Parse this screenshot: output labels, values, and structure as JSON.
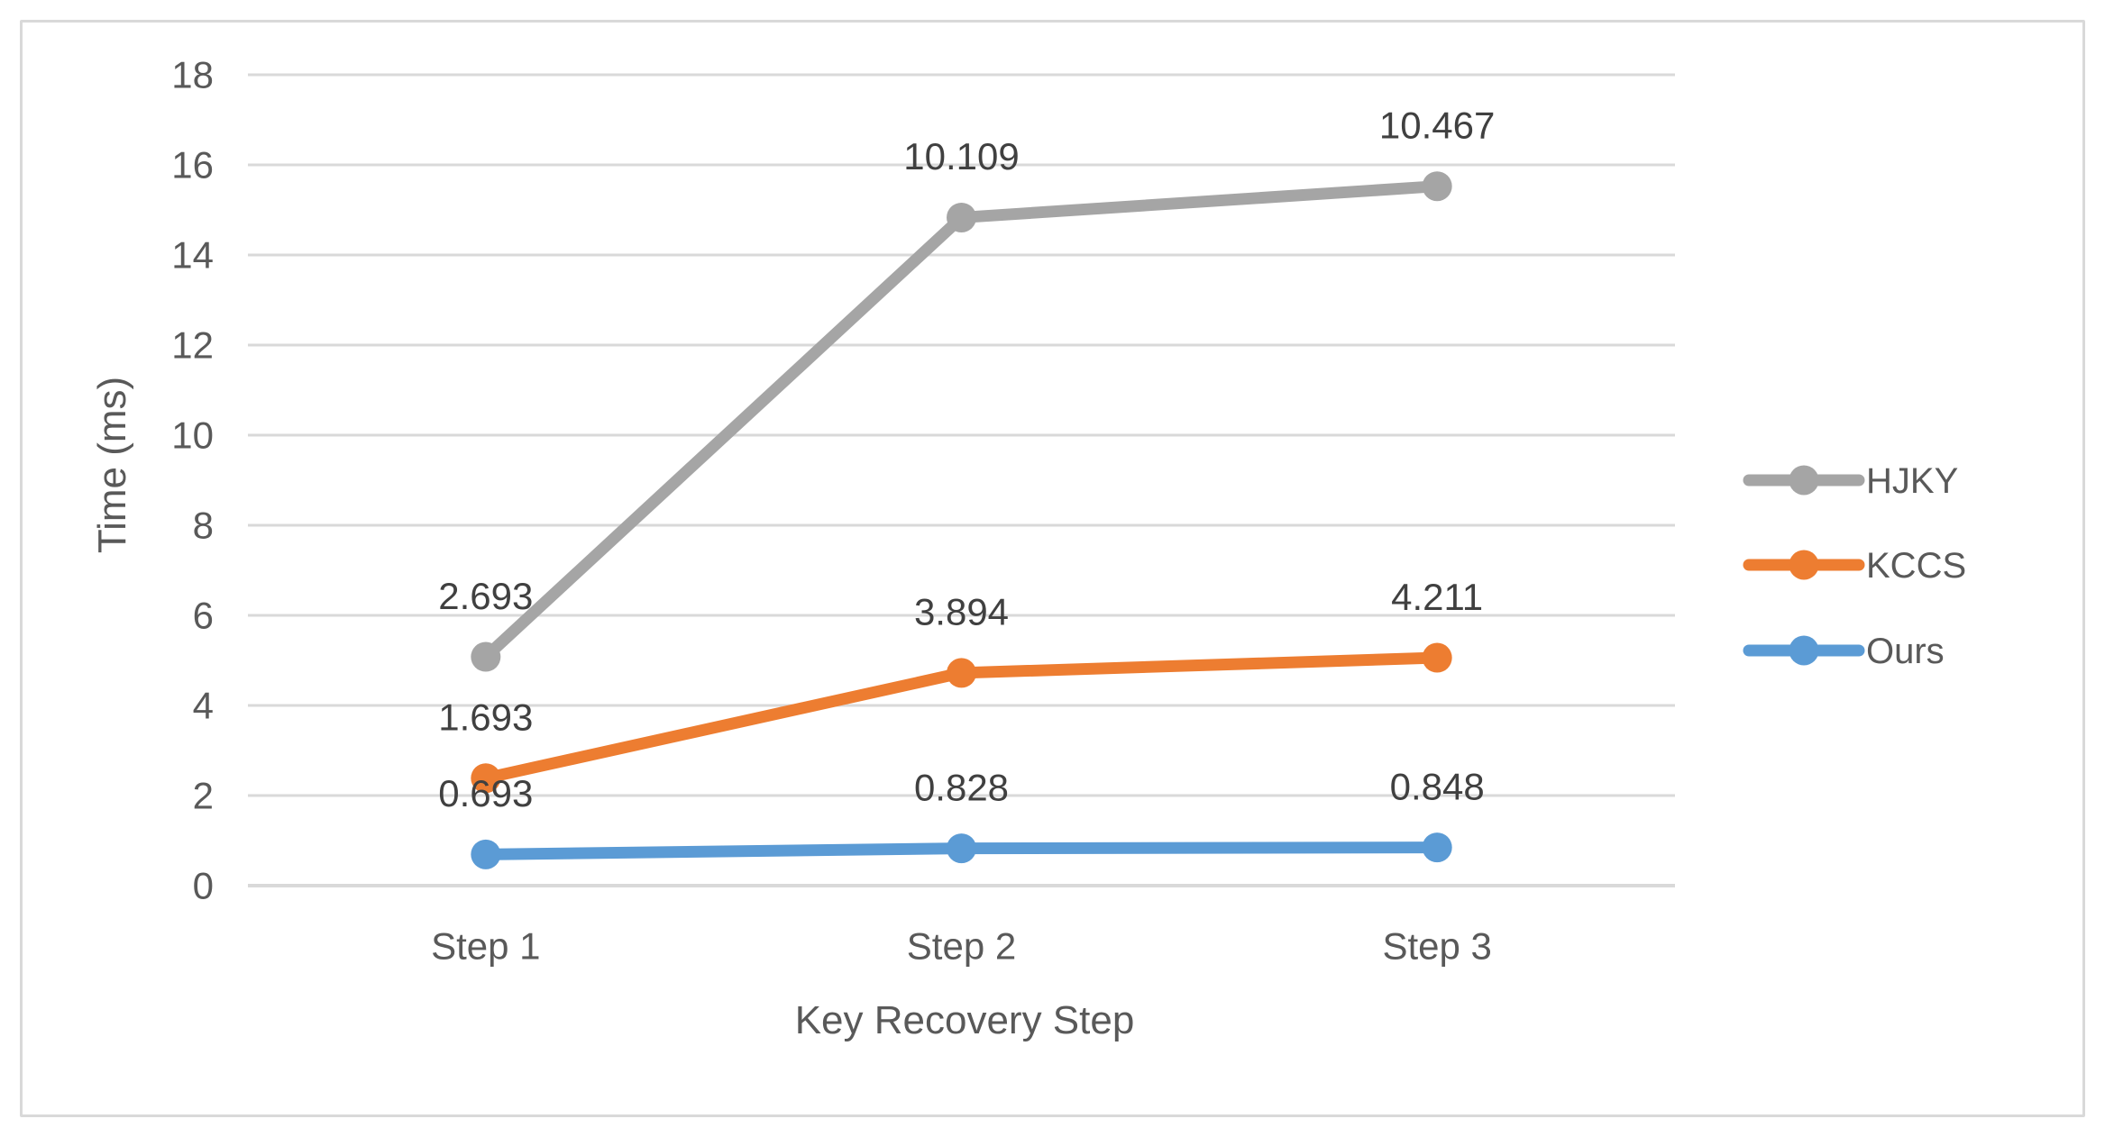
{
  "chart_data": {
    "type": "line",
    "stacked": true,
    "plot_note": "lines plotted cumulatively bottom-to-top (Ours, then +KCCS, then +HJKY); data labels show per-series values",
    "title": "",
    "xlabel": "Key Recovery Step",
    "ylabel": "Time (ms)",
    "categories": [
      "Step 1",
      "Step 2",
      "Step 3"
    ],
    "series": [
      {
        "name": "HJKY",
        "color": "#A5A5A5",
        "values": [
          2.693,
          10.109,
          10.467
        ],
        "labels": [
          "2.693",
          "10.109",
          "10.467"
        ]
      },
      {
        "name": "KCCS",
        "color": "#ED7D31",
        "values": [
          1.693,
          3.894,
          4.211
        ],
        "labels": [
          "1.693",
          "3.894",
          "4.211"
        ]
      },
      {
        "name": "Ours",
        "color": "#5B9BD5",
        "values": [
          0.693,
          0.828,
          0.848
        ],
        "labels": [
          "0.693",
          "0.828",
          "0.848"
        ]
      }
    ],
    "legend_order": [
      "HJKY",
      "KCCS",
      "Ours"
    ],
    "legend_position": "right",
    "ylim": [
      0,
      18
    ],
    "ytick_step": 2,
    "ytick_labels": [
      "0",
      "2",
      "4",
      "6",
      "8",
      "10",
      "12",
      "14",
      "16",
      "18"
    ],
    "grid": true,
    "colors": {
      "gridline": "#D9D9D9",
      "border": "#D9D9D9",
      "axis_text": "#595959",
      "data_label_text": "#404040"
    }
  }
}
